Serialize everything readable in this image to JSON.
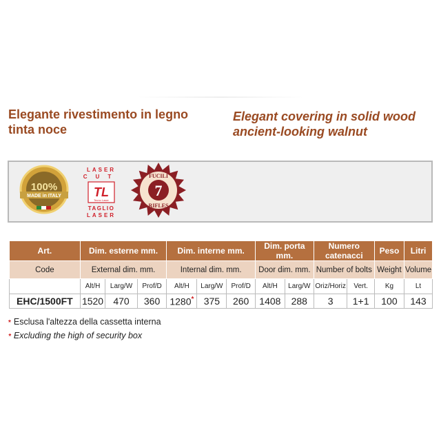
{
  "headings": {
    "it_line1": "Elegante rivestimento in legno",
    "it_line2": "tinta noce",
    "en_line1": "Elegant covering in solid wood",
    "en_line2": "ancient-looking walnut"
  },
  "badges": {
    "made_in_italy": "100% MADE in ITALY",
    "laser_top": "LASER CUT",
    "laser_brand": "Tecno Laser",
    "laser_bottom": "TAGLIO LASER",
    "rifles_top": "FUCILI",
    "rifles_count": "7",
    "rifles_bottom": "RIFLES"
  },
  "table": {
    "group_it": [
      "Art.",
      "Dim. esterne mm.",
      "Dim.  interne mm.",
      "Dim. porta mm.",
      "Numero catenacci",
      "Peso",
      "Litri"
    ],
    "group_en": [
      "Code",
      "External dim. mm.",
      "Internal dim. mm.",
      "Door dim. mm.",
      "Number of bolts",
      "Weight",
      "Volume"
    ],
    "sub": [
      "",
      "Alt/H",
      "Larg/W",
      "Prof/D",
      "Alt/H",
      "Larg/W",
      "Prof/D",
      "Alt/H",
      "Larg/W",
      "Oriz/Horiz",
      "Vert.",
      "Kg",
      "Lt"
    ],
    "row": [
      "EHC/1500FT",
      "1520",
      "470",
      "360",
      "1280",
      "375",
      "260",
      "1408",
      "288",
      "3",
      "1+1",
      "100",
      "143"
    ],
    "asterisk": "*"
  },
  "notes": {
    "it": "Esclusa l'altezza della cassetta interna",
    "en": "Excluding the high of security box",
    "marker": "*"
  },
  "colors": {
    "header": "#b5703f",
    "subheader": "#ecd3c0",
    "title": "#9a4a22",
    "rifles": "#8b1f24",
    "laser": "#d0202a"
  }
}
